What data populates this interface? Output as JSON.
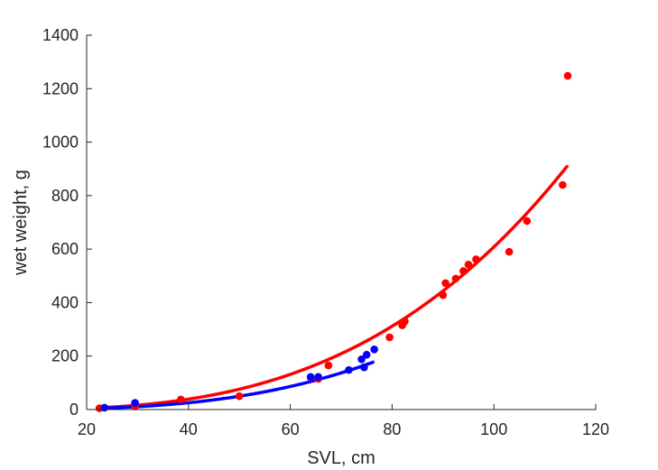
{
  "chart_data": {
    "type": "scatter",
    "title": "",
    "xlabel": "SVL, cm",
    "ylabel": "wet weight, g",
    "xlim": [
      20,
      120
    ],
    "ylim": [
      0,
      1400
    ],
    "xticks": [
      20,
      40,
      60,
      80,
      100,
      120
    ],
    "yticks": [
      0,
      200,
      400,
      600,
      800,
      1000,
      1200,
      1400
    ],
    "grid": false,
    "legend": "none",
    "series": [
      {
        "color": "#ff0000",
        "points": [
          [
            22.5,
            5
          ],
          [
            29.5,
            12
          ],
          [
            38.5,
            38
          ],
          [
            50,
            50
          ],
          [
            64,
            120
          ],
          [
            65.5,
            115
          ],
          [
            67.5,
            165
          ],
          [
            79.5,
            270
          ],
          [
            82,
            315
          ],
          [
            82.5,
            330
          ],
          [
            90,
            428
          ],
          [
            90.5,
            473
          ],
          [
            92.5,
            490
          ],
          [
            94,
            518
          ],
          [
            95,
            542
          ],
          [
            96.5,
            562
          ],
          [
            103,
            590
          ],
          [
            106.5,
            705
          ],
          [
            113.5,
            840
          ],
          [
            114.5,
            1248
          ]
        ],
        "fit": {
          "a": 0.0006167,
          "b": 2.997,
          "x_range": [
            22.5,
            114.5
          ]
        }
      },
      {
        "color": "#0000ff",
        "points": [
          [
            23.5,
            7
          ],
          [
            29.5,
            25
          ],
          [
            64,
            122
          ],
          [
            65.5,
            122
          ],
          [
            71.5,
            148
          ],
          [
            74,
            188
          ],
          [
            74.5,
            158
          ],
          [
            75,
            205
          ],
          [
            76.5,
            225
          ]
        ],
        "fit": {
          "a": 0.0003994,
          "b": 3.0,
          "x_range": [
            23.5,
            76.5
          ]
        }
      }
    ]
  }
}
